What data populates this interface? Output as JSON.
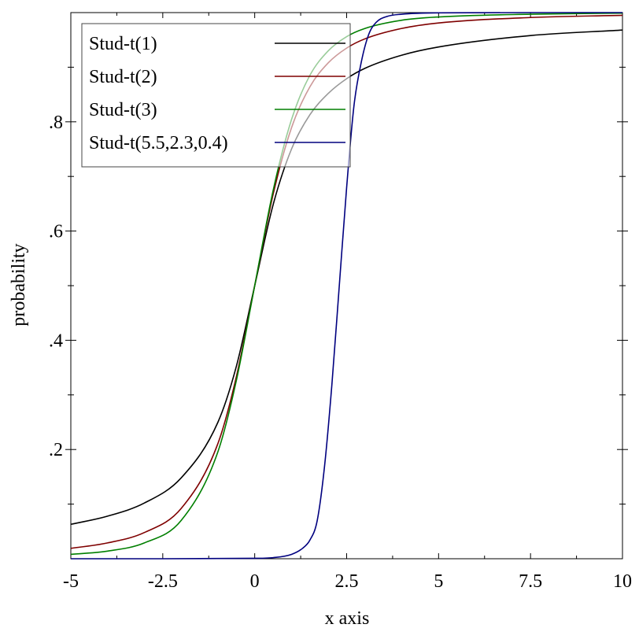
{
  "chart_data": {
    "type": "line",
    "title": "",
    "xlabel": "x axis",
    "ylabel": "probability",
    "xlim": [
      -5,
      10
    ],
    "ylim": [
      0,
      1
    ],
    "x_ticks": [
      {
        "value": -5,
        "label": "-5"
      },
      {
        "value": -2.5,
        "label": "-2.5"
      },
      {
        "value": 0,
        "label": "0"
      },
      {
        "value": 2.5,
        "label": "2.5"
      },
      {
        "value": 5,
        "label": "5"
      },
      {
        "value": 7.5,
        "label": "7.5"
      },
      {
        "value": 10,
        "label": "10"
      }
    ],
    "y_ticks": [
      {
        "value": 0.2,
        "label": ".2"
      },
      {
        "value": 0.4,
        "label": ".4"
      },
      {
        "value": 0.6,
        "label": ".6"
      },
      {
        "value": 0.8,
        "label": ".8"
      }
    ],
    "grid": false,
    "legend_position": "top-left",
    "series": [
      {
        "name": "Stud-t(1)",
        "color": "#000000",
        "x": [
          -5,
          -4,
          -3,
          -2,
          -1,
          -0.5,
          0,
          0.5,
          1,
          1.5,
          2,
          2.5,
          3,
          4,
          5,
          7.5,
          10
        ],
        "y": [
          0.063,
          0.078,
          0.102,
          0.148,
          0.25,
          0.352,
          0.5,
          0.648,
          0.75,
          0.813,
          0.852,
          0.879,
          0.898,
          0.922,
          0.937,
          0.958,
          0.968
        ]
      },
      {
        "name": "Stud-t(2)",
        "color": "#7f0000",
        "x": [
          -5,
          -4,
          -3,
          -2,
          -1,
          -0.5,
          0,
          0.5,
          1,
          1.5,
          2,
          2.5,
          3,
          4,
          5,
          7.5,
          10
        ],
        "y": [
          0.019,
          0.029,
          0.048,
          0.092,
          0.211,
          0.333,
          0.5,
          0.667,
          0.789,
          0.864,
          0.908,
          0.935,
          0.952,
          0.971,
          0.981,
          0.991,
          0.995
        ]
      },
      {
        "name": "Stud-t(3)",
        "color": "#007f00",
        "x": [
          -5,
          -4,
          -3,
          -2,
          -1,
          -0.5,
          0,
          0.5,
          1,
          1.5,
          2,
          2.5,
          3,
          4,
          5,
          7.5,
          10
        ],
        "y": [
          0.008,
          0.014,
          0.029,
          0.07,
          0.196,
          0.326,
          0.5,
          0.674,
          0.804,
          0.885,
          0.93,
          0.956,
          0.971,
          0.986,
          0.992,
          0.997,
          0.999
        ]
      },
      {
        "name": "Stud-t(5.5,2.3,0.4)",
        "color": "#00007f",
        "x": [
          -5,
          -2.5,
          0,
          0.5,
          1,
          1.3,
          1.5,
          1.7,
          1.9,
          2.1,
          2.3,
          2.5,
          2.7,
          2.9,
          3.1,
          3.3,
          3.6,
          4,
          5,
          7.5,
          10
        ],
        "y": [
          0.0,
          0.0,
          0.0008,
          0.002,
          0.008,
          0.019,
          0.034,
          0.07,
          0.17,
          0.32,
          0.5,
          0.68,
          0.83,
          0.91,
          0.96,
          0.982,
          0.993,
          0.997,
          0.9995,
          1.0,
          1.0
        ]
      }
    ]
  }
}
